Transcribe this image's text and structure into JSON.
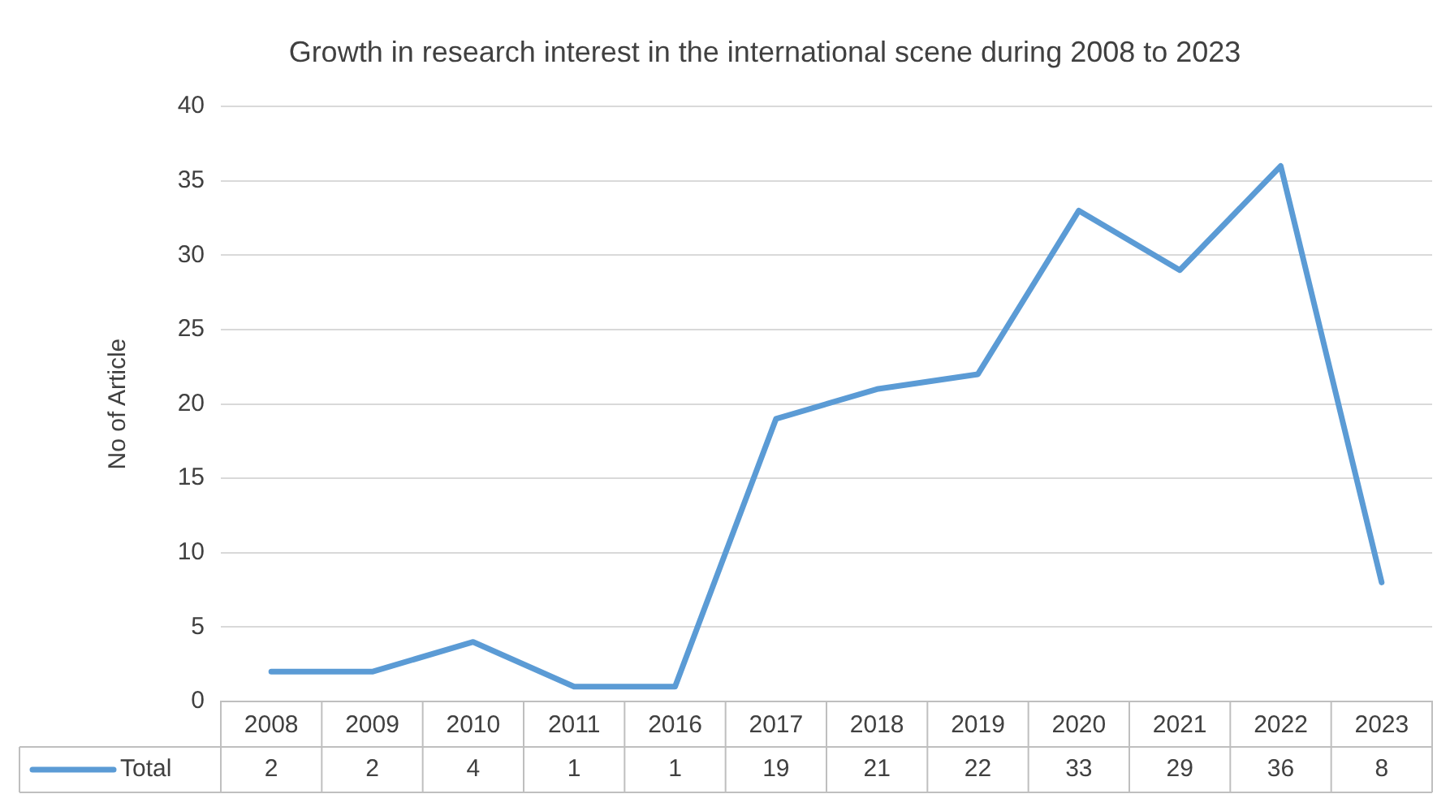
{
  "chart_data": {
    "type": "line",
    "title": "Growth in research interest in the international scene during 2008 to 2023",
    "ylabel": "No of Article",
    "categories": [
      "2008",
      "2009",
      "2010",
      "2011",
      "2016",
      "2017",
      "2018",
      "2019",
      "2020",
      "2021",
      "2022",
      "2023"
    ],
    "series": [
      {
        "name": "Total",
        "color": "#5b9bd5",
        "values": [
          2,
          2,
          4,
          1,
          1,
          19,
          21,
          22,
          33,
          29,
          36,
          8
        ]
      }
    ],
    "ylim": [
      0,
      40
    ],
    "yticks": [
      0,
      5,
      10,
      15,
      20,
      25,
      30,
      35,
      40
    ],
    "grid": "y",
    "data_labels": true,
    "marker": "none",
    "line_style": "solid"
  }
}
